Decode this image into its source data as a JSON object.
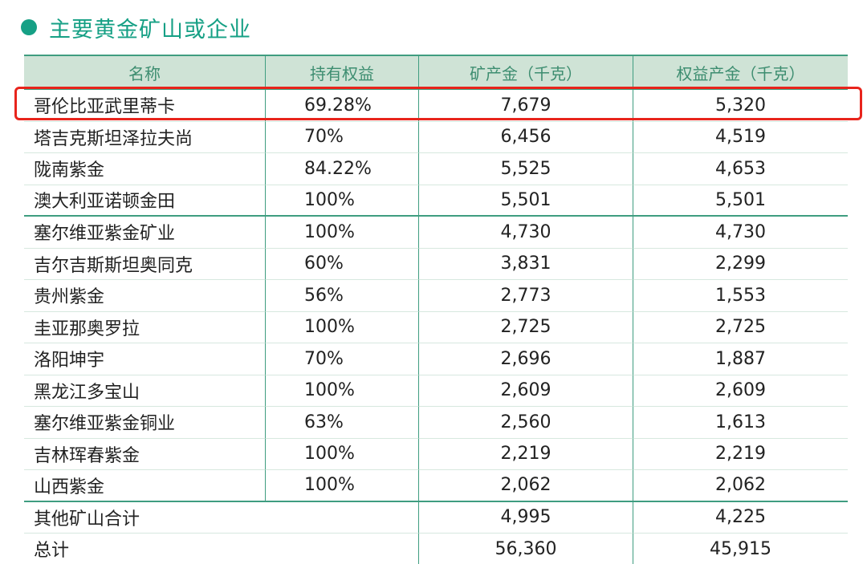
{
  "title": "主要黄金矿山或企业",
  "headers": {
    "name": "名称",
    "share": "持有权益",
    "production": "矿产金（千克）",
    "equity": "权益产金（千克）"
  },
  "rows": [
    {
      "name": "哥伦比亚武里蒂卡",
      "share": "69.28%",
      "production": "7,679",
      "equity": "5,320"
    },
    {
      "name": "塔吉克斯坦泽拉夫尚",
      "share": "70%",
      "production": "6,456",
      "equity": "4,519"
    },
    {
      "name": "陇南紫金",
      "share": "84.22%",
      "production": "5,525",
      "equity": "4,653"
    },
    {
      "name": "澳大利亚诺顿金田",
      "share": "100%",
      "production": "5,501",
      "equity": "5,501"
    },
    {
      "name": "塞尔维亚紫金矿业",
      "share": "100%",
      "production": "4,730",
      "equity": "4,730"
    },
    {
      "name": "吉尔吉斯斯坦奥同克",
      "share": "60%",
      "production": "3,831",
      "equity": "2,299"
    },
    {
      "name": "贵州紫金",
      "share": "56%",
      "production": "2,773",
      "equity": "1,553"
    },
    {
      "name": "圭亚那奥罗拉",
      "share": "100%",
      "production": "2,725",
      "equity": "2,725"
    },
    {
      "name": "洛阳坤宇",
      "share": "70%",
      "production": "2,696",
      "equity": "1,887"
    },
    {
      "name": "黑龙江多宝山",
      "share": "100%",
      "production": "2,609",
      "equity": "2,609"
    },
    {
      "name": "塞尔维亚紫金铜业",
      "share": "63%",
      "production": "2,560",
      "equity": "1,613"
    },
    {
      "name": "吉林珲春紫金",
      "share": "100%",
      "production": "2,219",
      "equity": "2,219"
    },
    {
      "name": "山西紫金",
      "share": "100%",
      "production": "2,062",
      "equity": "2,062"
    }
  ],
  "other": {
    "name": "其他矿山合计",
    "production": "4,995",
    "equity": "4,225"
  },
  "total": {
    "name": "总计",
    "production": "56,360",
    "equity": "45,915"
  },
  "colors": {
    "accent": "#16a085",
    "header_bg": "#cfe3d6",
    "highlight": "#e8241c"
  }
}
